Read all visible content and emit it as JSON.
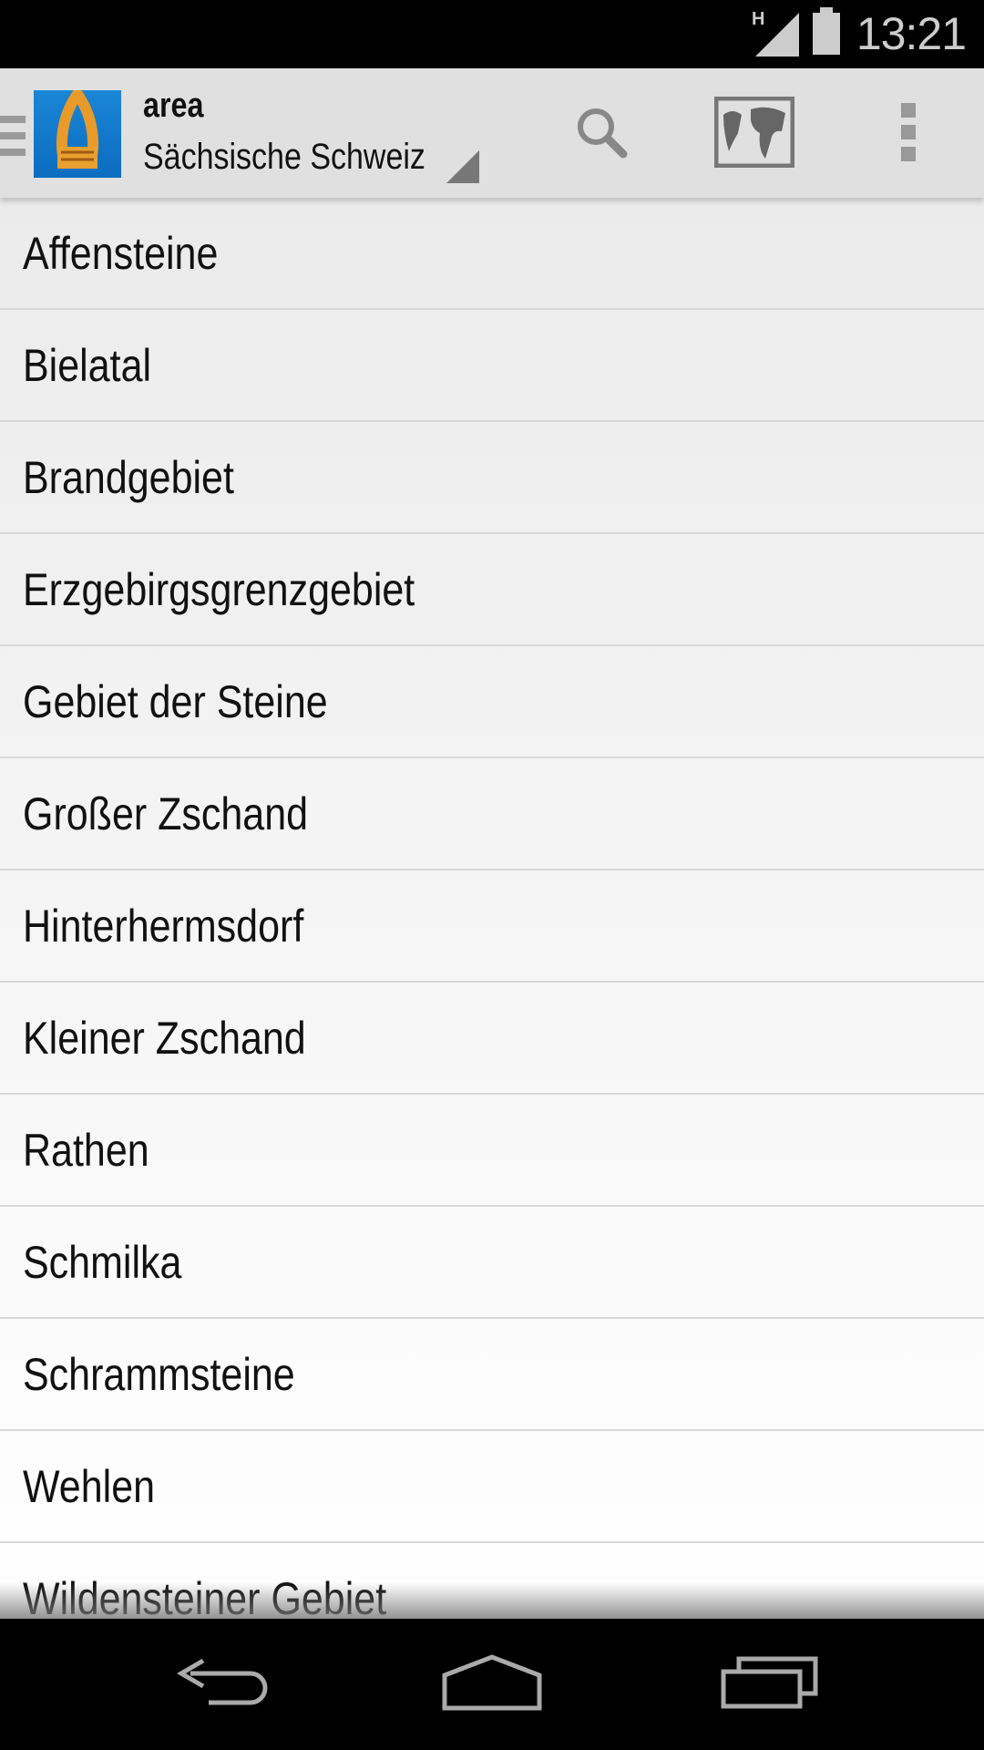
{
  "status_bar": {
    "network": "H",
    "time": "13:21"
  },
  "action_bar": {
    "title": "area",
    "subtitle": "Sächsische Schweiz",
    "icons": [
      "drawer-icon",
      "app-logo-rope",
      "search-icon",
      "world-map-icon",
      "overflow-menu-icon"
    ]
  },
  "areas": [
    {
      "label": "Affensteine"
    },
    {
      "label": "Bielatal"
    },
    {
      "label": "Brandgebiet"
    },
    {
      "label": "Erzgebirgsgrenzgebiet"
    },
    {
      "label": "Gebiet der Steine"
    },
    {
      "label": "Großer Zschand"
    },
    {
      "label": "Hinterhermsdorf"
    },
    {
      "label": "Kleiner Zschand"
    },
    {
      "label": "Rathen"
    },
    {
      "label": "Schmilka"
    },
    {
      "label": "Schrammsteine"
    },
    {
      "label": "Wehlen"
    },
    {
      "label": "Wildensteiner Gebiet"
    }
  ],
  "nav_bar": {
    "icons": [
      "back-icon",
      "home-icon",
      "recents-icon"
    ]
  }
}
